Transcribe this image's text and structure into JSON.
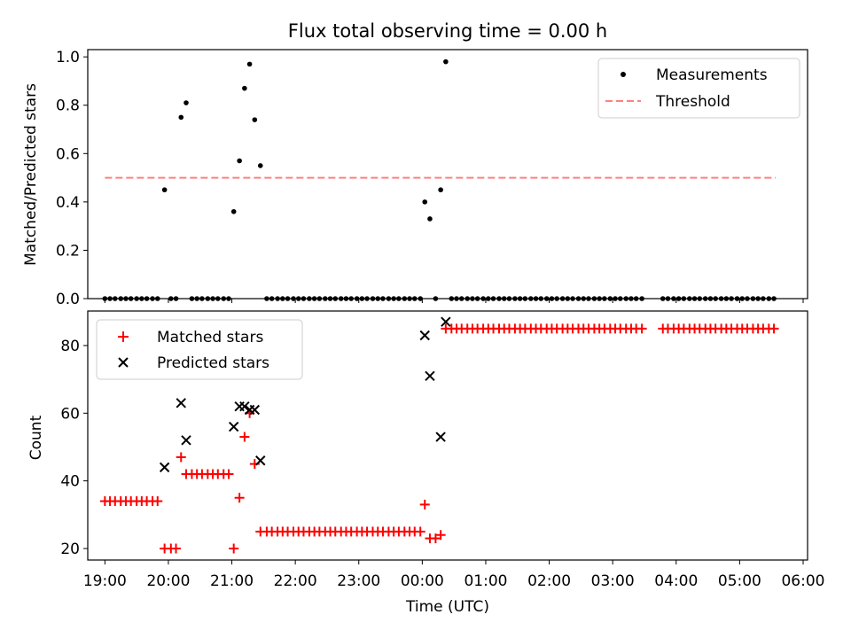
{
  "chart_data": [
    {
      "type": "scatter",
      "title": "Flux total observing time = 0.00 h",
      "xlabel": "",
      "ylabel": "Matched/Predicted stars",
      "xlim": [
        18.73,
        30.07
      ],
      "ylim": [
        0.0,
        1.03
      ],
      "yticks": [
        0.0,
        0.2,
        0.4,
        0.6,
        0.8,
        1.0
      ],
      "ytick_labels": [
        "0.0",
        "0.2",
        "0.4",
        "0.6",
        "0.8",
        "1.0"
      ],
      "legend": {
        "position": "top-right",
        "entries": [
          "Measurements",
          "Threshold"
        ]
      },
      "series": [
        {
          "name": "Measurements",
          "kind": "scatter",
          "color": "#000000",
          "points": [
            [
              19.0,
              0
            ],
            [
              19.08,
              0
            ],
            [
              19.16,
              0
            ],
            [
              19.25,
              0
            ],
            [
              19.33,
              0
            ],
            [
              19.41,
              0
            ],
            [
              19.5,
              0
            ],
            [
              19.58,
              0
            ],
            [
              19.66,
              0
            ],
            [
              19.75,
              0
            ],
            [
              19.83,
              0
            ],
            [
              19.94,
              0.45
            ],
            [
              20.04,
              0
            ],
            [
              20.12,
              0
            ],
            [
              20.2,
              0.75
            ],
            [
              20.28,
              0.81
            ],
            [
              20.37,
              0
            ],
            [
              20.45,
              0
            ],
            [
              20.53,
              0
            ],
            [
              20.62,
              0
            ],
            [
              20.7,
              0
            ],
            [
              20.78,
              0
            ],
            [
              20.87,
              0
            ],
            [
              20.95,
              0
            ],
            [
              21.03,
              0.36
            ],
            [
              21.12,
              0.57
            ],
            [
              21.2,
              0.87
            ],
            [
              21.28,
              0.97
            ],
            [
              21.36,
              0.74
            ],
            [
              21.45,
              0.55
            ],
            [
              21.55,
              0
            ],
            [
              21.63,
              0
            ],
            [
              21.72,
              0
            ],
            [
              21.8,
              0
            ],
            [
              21.88,
              0
            ],
            [
              21.97,
              0
            ],
            [
              22.05,
              0
            ],
            [
              22.13,
              0
            ],
            [
              22.22,
              0
            ],
            [
              22.3,
              0
            ],
            [
              22.38,
              0
            ],
            [
              22.47,
              0
            ],
            [
              22.55,
              0
            ],
            [
              22.63,
              0
            ],
            [
              22.72,
              0
            ],
            [
              22.8,
              0
            ],
            [
              22.88,
              0
            ],
            [
              22.97,
              0
            ],
            [
              23.05,
              0
            ],
            [
              23.13,
              0
            ],
            [
              23.22,
              0
            ],
            [
              23.3,
              0
            ],
            [
              23.38,
              0
            ],
            [
              23.47,
              0
            ],
            [
              23.55,
              0
            ],
            [
              23.63,
              0
            ],
            [
              23.72,
              0
            ],
            [
              23.8,
              0
            ],
            [
              23.88,
              0
            ],
            [
              23.97,
              0
            ],
            [
              24.04,
              0.4
            ],
            [
              24.12,
              0.33
            ],
            [
              24.21,
              0
            ],
            [
              24.29,
              0.45
            ],
            [
              24.37,
              0.98
            ],
            [
              24.46,
              0
            ],
            [
              24.54,
              0
            ],
            [
              24.62,
              0
            ],
            [
              24.71,
              0
            ],
            [
              24.79,
              0
            ],
            [
              24.87,
              0
            ],
            [
              24.96,
              0
            ],
            [
              25.04,
              0
            ],
            [
              25.12,
              0
            ],
            [
              25.21,
              0
            ],
            [
              25.29,
              0
            ],
            [
              25.37,
              0
            ],
            [
              25.46,
              0
            ],
            [
              25.54,
              0
            ],
            [
              25.62,
              0
            ],
            [
              25.71,
              0
            ],
            [
              25.79,
              0
            ],
            [
              25.87,
              0
            ],
            [
              25.96,
              0
            ],
            [
              26.04,
              0
            ],
            [
              26.12,
              0
            ],
            [
              26.21,
              0
            ],
            [
              26.29,
              0
            ],
            [
              26.37,
              0
            ],
            [
              26.46,
              0
            ],
            [
              26.54,
              0
            ],
            [
              26.62,
              0
            ],
            [
              26.71,
              0
            ],
            [
              26.79,
              0
            ],
            [
              26.87,
              0
            ],
            [
              26.96,
              0
            ],
            [
              27.04,
              0
            ],
            [
              27.12,
              0
            ],
            [
              27.21,
              0
            ],
            [
              27.29,
              0
            ],
            [
              27.37,
              0
            ],
            [
              27.46,
              0
            ],
            [
              27.79,
              0
            ],
            [
              27.87,
              0
            ],
            [
              27.96,
              0
            ],
            [
              28.04,
              0
            ],
            [
              28.12,
              0
            ],
            [
              28.21,
              0
            ],
            [
              28.29,
              0
            ],
            [
              28.37,
              0
            ],
            [
              28.46,
              0
            ],
            [
              28.54,
              0
            ],
            [
              28.62,
              0
            ],
            [
              28.71,
              0
            ],
            [
              28.79,
              0
            ],
            [
              28.87,
              0
            ],
            [
              28.96,
              0
            ],
            [
              29.04,
              0
            ],
            [
              29.12,
              0
            ],
            [
              29.21,
              0
            ],
            [
              29.29,
              0
            ],
            [
              29.37,
              0
            ],
            [
              29.46,
              0
            ],
            [
              29.54,
              0
            ]
          ]
        },
        {
          "name": "Threshold",
          "kind": "dashed-line",
          "color": "#ff8080",
          "x": [
            19.0,
            29.57
          ],
          "y": [
            0.5,
            0.5
          ]
        }
      ]
    },
    {
      "type": "scatter",
      "title": "",
      "xlabel": "Time (UTC)",
      "ylabel": "Count",
      "xlim": [
        18.73,
        30.07
      ],
      "ylim": [
        16.6,
        90.2
      ],
      "yticks": [
        20,
        40,
        60,
        80
      ],
      "ytick_labels": [
        "20",
        "40",
        "60",
        "80"
      ],
      "xticks": [
        19,
        20,
        21,
        22,
        23,
        24,
        25,
        26,
        27,
        28,
        29,
        30
      ],
      "xtick_labels": [
        "19:00",
        "20:00",
        "21:00",
        "22:00",
        "23:00",
        "00:00",
        "01:00",
        "02:00",
        "03:00",
        "04:00",
        "05:00",
        "06:00"
      ],
      "legend": {
        "position": "top-left",
        "entries": [
          "Matched stars",
          "Predicted stars"
        ]
      },
      "series": [
        {
          "name": "Matched stars",
          "kind": "scatter",
          "color": "#ff0000",
          "points": [
            [
              19.0,
              34
            ],
            [
              19.08,
              34
            ],
            [
              19.16,
              34
            ],
            [
              19.25,
              34
            ],
            [
              19.33,
              34
            ],
            [
              19.41,
              34
            ],
            [
              19.5,
              34
            ],
            [
              19.58,
              34
            ],
            [
              19.66,
              34
            ],
            [
              19.75,
              34
            ],
            [
              19.83,
              34
            ],
            [
              19.94,
              20
            ],
            [
              20.04,
              20
            ],
            [
              20.12,
              20
            ],
            [
              20.2,
              47
            ],
            [
              20.28,
              42
            ],
            [
              20.37,
              42
            ],
            [
              20.45,
              42
            ],
            [
              20.53,
              42
            ],
            [
              20.62,
              42
            ],
            [
              20.7,
              42
            ],
            [
              20.78,
              42
            ],
            [
              20.87,
              42
            ],
            [
              20.95,
              42
            ],
            [
              21.03,
              20
            ],
            [
              21.12,
              35
            ],
            [
              21.2,
              53
            ],
            [
              21.28,
              60
            ],
            [
              21.36,
              45
            ],
            [
              21.45,
              25
            ],
            [
              21.55,
              25
            ],
            [
              21.63,
              25
            ],
            [
              21.72,
              25
            ],
            [
              21.8,
              25
            ],
            [
              21.88,
              25
            ],
            [
              21.97,
              25
            ],
            [
              22.05,
              25
            ],
            [
              22.13,
              25
            ],
            [
              22.22,
              25
            ],
            [
              22.3,
              25
            ],
            [
              22.38,
              25
            ],
            [
              22.47,
              25
            ],
            [
              22.55,
              25
            ],
            [
              22.63,
              25
            ],
            [
              22.72,
              25
            ],
            [
              22.8,
              25
            ],
            [
              22.88,
              25
            ],
            [
              22.97,
              25
            ],
            [
              23.05,
              25
            ],
            [
              23.13,
              25
            ],
            [
              23.22,
              25
            ],
            [
              23.3,
              25
            ],
            [
              23.38,
              25
            ],
            [
              23.47,
              25
            ],
            [
              23.55,
              25
            ],
            [
              23.63,
              25
            ],
            [
              23.72,
              25
            ],
            [
              23.8,
              25
            ],
            [
              23.88,
              25
            ],
            [
              23.97,
              25
            ],
            [
              24.04,
              33
            ],
            [
              24.12,
              23
            ],
            [
              24.21,
              23
            ],
            [
              24.29,
              24
            ],
            [
              24.37,
              85
            ],
            [
              24.46,
              85
            ],
            [
              24.54,
              85
            ],
            [
              24.62,
              85
            ],
            [
              24.71,
              85
            ],
            [
              24.79,
              85
            ],
            [
              24.87,
              85
            ],
            [
              24.96,
              85
            ],
            [
              25.04,
              85
            ],
            [
              25.12,
              85
            ],
            [
              25.21,
              85
            ],
            [
              25.29,
              85
            ],
            [
              25.37,
              85
            ],
            [
              25.46,
              85
            ],
            [
              25.54,
              85
            ],
            [
              25.62,
              85
            ],
            [
              25.71,
              85
            ],
            [
              25.79,
              85
            ],
            [
              25.87,
              85
            ],
            [
              25.96,
              85
            ],
            [
              26.04,
              85
            ],
            [
              26.12,
              85
            ],
            [
              26.21,
              85
            ],
            [
              26.29,
              85
            ],
            [
              26.37,
              85
            ],
            [
              26.46,
              85
            ],
            [
              26.54,
              85
            ],
            [
              26.62,
              85
            ],
            [
              26.71,
              85
            ],
            [
              26.79,
              85
            ],
            [
              26.87,
              85
            ],
            [
              26.96,
              85
            ],
            [
              27.04,
              85
            ],
            [
              27.12,
              85
            ],
            [
              27.21,
              85
            ],
            [
              27.29,
              85
            ],
            [
              27.37,
              85
            ],
            [
              27.46,
              85
            ],
            [
              27.79,
              85
            ],
            [
              27.87,
              85
            ],
            [
              27.96,
              85
            ],
            [
              28.04,
              85
            ],
            [
              28.12,
              85
            ],
            [
              28.21,
              85
            ],
            [
              28.29,
              85
            ],
            [
              28.37,
              85
            ],
            [
              28.46,
              85
            ],
            [
              28.54,
              85
            ],
            [
              28.62,
              85
            ],
            [
              28.71,
              85
            ],
            [
              28.79,
              85
            ],
            [
              28.87,
              85
            ],
            [
              28.96,
              85
            ],
            [
              29.04,
              85
            ],
            [
              29.12,
              85
            ],
            [
              29.21,
              85
            ],
            [
              29.29,
              85
            ],
            [
              29.37,
              85
            ],
            [
              29.46,
              85
            ],
            [
              29.54,
              85
            ]
          ]
        },
        {
          "name": "Predicted stars",
          "kind": "scatter",
          "color": "#000000",
          "points": [
            [
              19.94,
              44
            ],
            [
              20.2,
              63
            ],
            [
              20.28,
              52
            ],
            [
              21.03,
              56
            ],
            [
              21.12,
              62
            ],
            [
              21.2,
              62
            ],
            [
              21.28,
              61
            ],
            [
              21.36,
              61
            ],
            [
              21.45,
              46
            ],
            [
              24.04,
              83
            ],
            [
              24.12,
              71
            ],
            [
              24.29,
              53
            ],
            [
              24.37,
              87
            ]
          ]
        }
      ]
    }
  ]
}
